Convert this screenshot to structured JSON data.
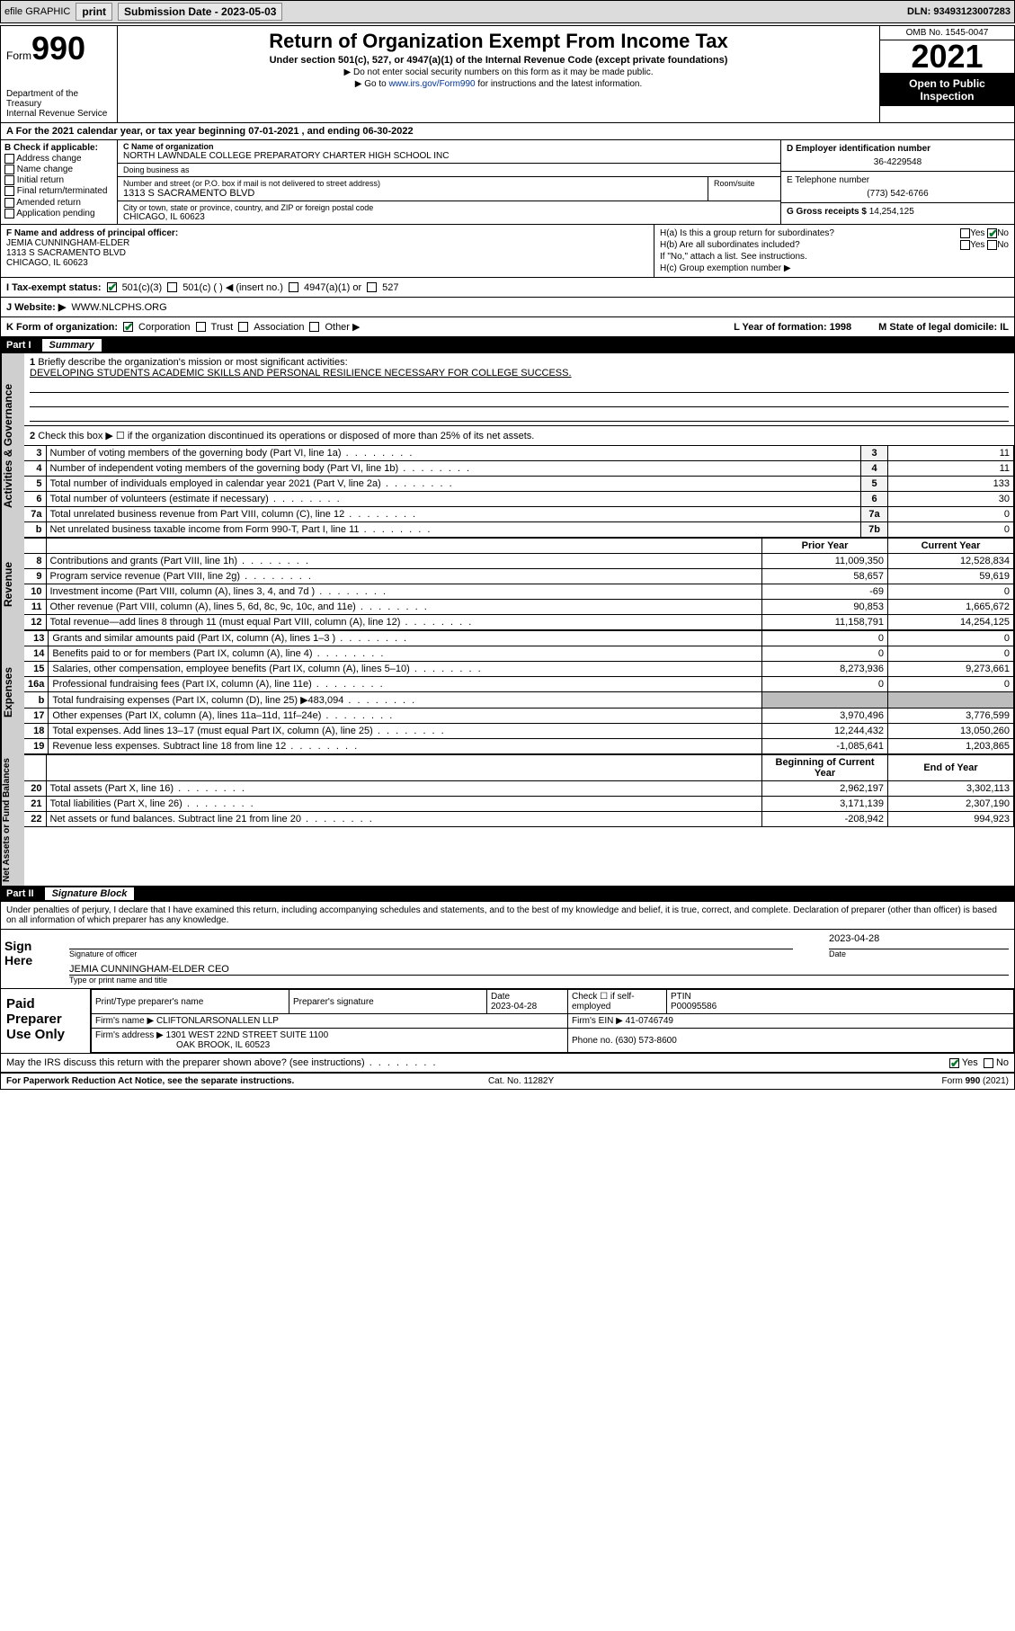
{
  "topbar": {
    "efile": "efile GRAPHIC",
    "print": "print",
    "submission_label": "Submission Date - 2023-05-03",
    "dln": "DLN: 93493123007283"
  },
  "header": {
    "form_label": "Form",
    "form_number": "990",
    "dept": "Department of the Treasury",
    "irs": "Internal Revenue Service",
    "title": "Return of Organization Exempt From Income Tax",
    "subtitle": "Under section 501(c), 527, or 4947(a)(1) of the Internal Revenue Code (except private foundations)",
    "note1": "▶ Do not enter social security numbers on this form as it may be made public.",
    "note2_prefix": "▶ Go to ",
    "note2_link": "www.irs.gov/Form990",
    "note2_suffix": " for instructions and the latest information.",
    "omb": "OMB No. 1545-0047",
    "year": "2021",
    "open": "Open to Public Inspection"
  },
  "line_a": "For the 2021 calendar year, or tax year beginning 07-01-2021  , and ending 06-30-2022",
  "section_b": {
    "heading": "B Check if applicable:",
    "options": [
      "Address change",
      "Name change",
      "Initial return",
      "Final return/terminated",
      "Amended return",
      "Application pending"
    ],
    "c_label": "C Name of organization",
    "org_name": "NORTH LAWNDALE COLLEGE PREPARATORY CHARTER HIGH SCHOOL INC",
    "dba_label": "Doing business as",
    "addr_label": "Number and street (or P.O. box if mail is not delivered to street address)",
    "room_label": "Room/suite",
    "street": "1313 S SACRAMENTO BLVD",
    "city_label": "City or town, state or province, country, and ZIP or foreign postal code",
    "city": "CHICAGO, IL  60623",
    "d_label": "D Employer identification number",
    "ein": "36-4229548",
    "e_label": "E Telephone number",
    "phone": "(773) 542-6766",
    "g_label": "G Gross receipts $",
    "gross": "14,254,125"
  },
  "section_f": {
    "f_label": "F Name and address of principal officer:",
    "officer": "JEMIA CUNNINGHAM-ELDER",
    "officer_addr1": "1313 S SACRAMENTO BLVD",
    "officer_addr2": "CHICAGO, IL  60623",
    "ha_label": "H(a)  Is this a group return for subordinates?",
    "ha_yes": "Yes",
    "ha_no": "No",
    "hb_label": "H(b)  Are all subordinates included?",
    "hb_note": "If \"No,\" attach a list. See instructions.",
    "hc_label": "H(c)  Group exemption number ▶"
  },
  "status": {
    "i_label": "I  Tax-exempt status:",
    "opt1": "501(c)(3)",
    "opt2": "501(c) (  ) ◀ (insert no.)",
    "opt3": "4947(a)(1) or",
    "opt4": "527"
  },
  "website": {
    "j_label": "J  Website: ▶",
    "url": "WWW.NLCPHS.ORG"
  },
  "k_row": {
    "k_label": "K Form of organization:",
    "opts": [
      "Corporation",
      "Trust",
      "Association",
      "Other ▶"
    ],
    "l_label": "L Year of formation: 1998",
    "m_label": "M State of legal domicile: IL"
  },
  "part1": {
    "header": "Part I",
    "title": "Summary",
    "q1": "Briefly describe the organization's mission or most significant activities:",
    "mission": "DEVELOPING STUDENTS ACADEMIC SKILLS AND PERSONAL RESILIENCE NECESSARY FOR COLLEGE SUCCESS.",
    "q2": "Check this box ▶ ☐  if the organization discontinued its operations or disposed of more than 25% of its net assets.",
    "governance": [
      {
        "n": "3",
        "d": "Number of voting members of the governing body (Part VI, line 1a)",
        "ln": "3",
        "v": "11"
      },
      {
        "n": "4",
        "d": "Number of independent voting members of the governing body (Part VI, line 1b)",
        "ln": "4",
        "v": "11"
      },
      {
        "n": "5",
        "d": "Total number of individuals employed in calendar year 2021 (Part V, line 2a)",
        "ln": "5",
        "v": "133"
      },
      {
        "n": "6",
        "d": "Total number of volunteers (estimate if necessary)",
        "ln": "6",
        "v": "30"
      },
      {
        "n": "7a",
        "d": "Total unrelated business revenue from Part VIII, column (C), line 12",
        "ln": "7a",
        "v": "0"
      },
      {
        "n": "b",
        "d": "Net unrelated business taxable income from Form 990-T, Part I, line 11",
        "ln": "7b",
        "v": "0"
      }
    ],
    "hdr_prior": "Prior Year",
    "hdr_current": "Current Year",
    "revenue": [
      {
        "n": "8",
        "d": "Contributions and grants (Part VIII, line 1h)",
        "p": "11,009,350",
        "c": "12,528,834"
      },
      {
        "n": "9",
        "d": "Program service revenue (Part VIII, line 2g)",
        "p": "58,657",
        "c": "59,619"
      },
      {
        "n": "10",
        "d": "Investment income (Part VIII, column (A), lines 3, 4, and 7d )",
        "p": "-69",
        "c": "0"
      },
      {
        "n": "11",
        "d": "Other revenue (Part VIII, column (A), lines 5, 6d, 8c, 9c, 10c, and 11e)",
        "p": "90,853",
        "c": "1,665,672"
      },
      {
        "n": "12",
        "d": "Total revenue—add lines 8 through 11 (must equal Part VIII, column (A), line 12)",
        "p": "11,158,791",
        "c": "14,254,125"
      }
    ],
    "expenses": [
      {
        "n": "13",
        "d": "Grants and similar amounts paid (Part IX, column (A), lines 1–3 )",
        "p": "0",
        "c": "0"
      },
      {
        "n": "14",
        "d": "Benefits paid to or for members (Part IX, column (A), line 4)",
        "p": "0",
        "c": "0"
      },
      {
        "n": "15",
        "d": "Salaries, other compensation, employee benefits (Part IX, column (A), lines 5–10)",
        "p": "8,273,936",
        "c": "9,273,661"
      },
      {
        "n": "16a",
        "d": "Professional fundraising fees (Part IX, column (A), line 11e)",
        "p": "0",
        "c": "0"
      },
      {
        "n": "b",
        "d": "Total fundraising expenses (Part IX, column (D), line 25) ▶483,094",
        "p": "",
        "c": "",
        "shade": true
      },
      {
        "n": "17",
        "d": "Other expenses (Part IX, column (A), lines 11a–11d, 11f–24e)",
        "p": "3,970,496",
        "c": "3,776,599"
      },
      {
        "n": "18",
        "d": "Total expenses. Add lines 13–17 (must equal Part IX, column (A), line 25)",
        "p": "12,244,432",
        "c": "13,050,260"
      },
      {
        "n": "19",
        "d": "Revenue less expenses. Subtract line 18 from line 12",
        "p": "-1,085,641",
        "c": "1,203,865"
      }
    ],
    "hdr_begin": "Beginning of Current Year",
    "hdr_end": "End of Year",
    "netassets": [
      {
        "n": "20",
        "d": "Total assets (Part X, line 16)",
        "p": "2,962,197",
        "c": "3,302,113"
      },
      {
        "n": "21",
        "d": "Total liabilities (Part X, line 26)",
        "p": "3,171,139",
        "c": "2,307,190"
      },
      {
        "n": "22",
        "d": "Net assets or fund balances. Subtract line 21 from line 20",
        "p": "-208,942",
        "c": "994,923"
      }
    ]
  },
  "part2": {
    "header": "Part II",
    "title": "Signature Block",
    "declar": "Under penalties of perjury, I declare that I have examined this return, including accompanying schedules and statements, and to the best of my knowledge and belief, it is true, correct, and complete. Declaration of preparer (other than officer) is based on all information of which preparer has any knowledge.",
    "sign_here": "Sign Here",
    "sig_officer": "Signature of officer",
    "sig_date": "2023-04-28",
    "sig_date_lbl": "Date",
    "officer_name": "JEMIA CUNNINGHAM-ELDER CEO",
    "officer_name_lbl": "Type or print name and title",
    "paid": "Paid Preparer Use Only",
    "pt_name_lbl": "Print/Type preparer's name",
    "pt_sig_lbl": "Preparer's signature",
    "pt_date_lbl": "Date",
    "pt_date": "2023-04-28",
    "pt_check_lbl": "Check ☐ if self-employed",
    "ptin_lbl": "PTIN",
    "ptin": "P00095586",
    "firm_name_lbl": "Firm's name   ▶",
    "firm_name": "CLIFTONLARSONALLEN LLP",
    "firm_ein_lbl": "Firm's EIN ▶",
    "firm_ein": "41-0746749",
    "firm_addr_lbl": "Firm's address ▶",
    "firm_addr": "1301 WEST 22ND STREET SUITE 1100",
    "firm_city": "OAK BROOK, IL  60523",
    "phone_lbl": "Phone no.",
    "phone": "(630) 573-8600",
    "discuss": "May the IRS discuss this return with the preparer shown above? (see instructions)",
    "yes": "Yes",
    "no": "No"
  },
  "footer": {
    "paperwork": "For Paperwork Reduction Act Notice, see the separate instructions.",
    "cat": "Cat. No. 11282Y",
    "form": "Form 990 (2021)"
  },
  "vlabels": {
    "gov": "Activities & Governance",
    "rev": "Revenue",
    "exp": "Expenses",
    "net": "Net Assets or Fund Balances"
  }
}
